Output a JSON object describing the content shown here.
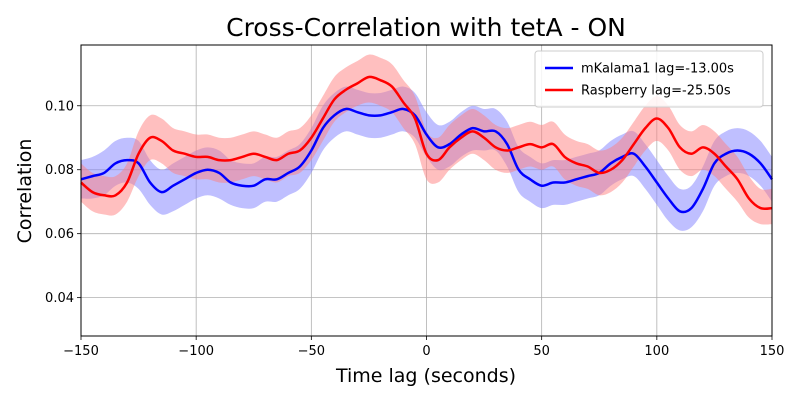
{
  "chart_data": {
    "type": "line",
    "title": "Cross-Correlation with tetA - ON",
    "xlabel": "Time lag (seconds)",
    "ylabel": "Correlation",
    "xlim": [
      -150,
      150
    ],
    "ylim": [
      0.028,
      0.119
    ],
    "xticks": [
      -150,
      -100,
      -50,
      0,
      50,
      100,
      150
    ],
    "xtick_labels": [
      "−150",
      "−100",
      "−50",
      "0",
      "50",
      "100",
      "150"
    ],
    "yticks": [
      0.04,
      0.06,
      0.08,
      0.1
    ],
    "ytick_labels": [
      "0.04",
      "0.06",
      "0.08",
      "0.10"
    ],
    "grid": true,
    "legend_position": "top-right",
    "x": [
      -150,
      -145,
      -140,
      -135,
      -130,
      -125,
      -120,
      -115,
      -110,
      -105,
      -100,
      -95,
      -90,
      -85,
      -80,
      -75,
      -70,
      -65,
      -60,
      -55,
      -50,
      -45,
      -40,
      -35,
      -30,
      -25,
      -20,
      -15,
      -10,
      -5,
      0,
      5,
      10,
      15,
      20,
      25,
      30,
      35,
      40,
      45,
      50,
      55,
      60,
      65,
      70,
      75,
      80,
      85,
      90,
      95,
      100,
      105,
      110,
      115,
      120,
      125,
      130,
      135,
      140,
      145,
      150
    ],
    "series": [
      {
        "name": "mKalama1 lag=-13.00s",
        "color": "#0000ff",
        "band_color": "#8080ff",
        "values": [
          0.077,
          0.078,
          0.079,
          0.082,
          0.083,
          0.082,
          0.076,
          0.073,
          0.075,
          0.077,
          0.079,
          0.08,
          0.079,
          0.076,
          0.075,
          0.075,
          0.077,
          0.077,
          0.079,
          0.081,
          0.086,
          0.093,
          0.097,
          0.099,
          0.098,
          0.097,
          0.097,
          0.098,
          0.099,
          0.097,
          0.091,
          0.087,
          0.088,
          0.091,
          0.093,
          0.092,
          0.092,
          0.088,
          0.08,
          0.077,
          0.075,
          0.076,
          0.076,
          0.077,
          0.078,
          0.079,
          0.082,
          0.084,
          0.085,
          0.081,
          0.076,
          0.071,
          0.067,
          0.068,
          0.074,
          0.082,
          0.085,
          0.086,
          0.085,
          0.082,
          0.077
        ],
        "lower": [
          0.071,
          0.071,
          0.072,
          0.075,
          0.076,
          0.074,
          0.069,
          0.066,
          0.067,
          0.069,
          0.071,
          0.072,
          0.071,
          0.069,
          0.068,
          0.068,
          0.07,
          0.07,
          0.072,
          0.074,
          0.079,
          0.086,
          0.09,
          0.092,
          0.091,
          0.09,
          0.09,
          0.091,
          0.092,
          0.09,
          0.084,
          0.08,
          0.081,
          0.084,
          0.086,
          0.086,
          0.086,
          0.081,
          0.073,
          0.07,
          0.068,
          0.069,
          0.069,
          0.07,
          0.071,
          0.072,
          0.075,
          0.077,
          0.078,
          0.074,
          0.069,
          0.064,
          0.061,
          0.062,
          0.067,
          0.075,
          0.078,
          0.079,
          0.078,
          0.075,
          0.07
        ],
        "upper": [
          0.083,
          0.084,
          0.086,
          0.089,
          0.09,
          0.089,
          0.083,
          0.08,
          0.082,
          0.084,
          0.086,
          0.087,
          0.086,
          0.083,
          0.082,
          0.082,
          0.084,
          0.084,
          0.086,
          0.088,
          0.093,
          0.1,
          0.104,
          0.106,
          0.105,
          0.104,
          0.104,
          0.105,
          0.106,
          0.104,
          0.098,
          0.094,
          0.095,
          0.098,
          0.1,
          0.099,
          0.099,
          0.095,
          0.087,
          0.084,
          0.082,
          0.083,
          0.083,
          0.084,
          0.085,
          0.086,
          0.089,
          0.091,
          0.092,
          0.088,
          0.083,
          0.078,
          0.074,
          0.075,
          0.081,
          0.089,
          0.092,
          0.093,
          0.092,
          0.089,
          0.084
        ]
      },
      {
        "name": "Raspberry lag=-25.50s",
        "color": "#ff0000",
        "band_color": "#ff8080",
        "values": [
          0.076,
          0.073,
          0.072,
          0.072,
          0.076,
          0.085,
          0.09,
          0.089,
          0.086,
          0.085,
          0.084,
          0.084,
          0.083,
          0.083,
          0.084,
          0.085,
          0.084,
          0.083,
          0.085,
          0.086,
          0.09,
          0.096,
          0.102,
          0.105,
          0.107,
          0.109,
          0.108,
          0.106,
          0.101,
          0.096,
          0.085,
          0.083,
          0.087,
          0.09,
          0.092,
          0.09,
          0.087,
          0.086,
          0.087,
          0.088,
          0.087,
          0.088,
          0.084,
          0.082,
          0.081,
          0.079,
          0.08,
          0.083,
          0.088,
          0.093,
          0.096,
          0.093,
          0.087,
          0.085,
          0.087,
          0.085,
          0.081,
          0.077,
          0.071,
          0.068,
          0.068
        ],
        "lower": [
          0.07,
          0.067,
          0.066,
          0.066,
          0.07,
          0.078,
          0.083,
          0.082,
          0.079,
          0.078,
          0.077,
          0.077,
          0.076,
          0.076,
          0.077,
          0.078,
          0.077,
          0.076,
          0.078,
          0.079,
          0.083,
          0.089,
          0.095,
          0.098,
          0.1,
          0.101,
          0.1,
          0.098,
          0.093,
          0.088,
          0.077,
          0.076,
          0.08,
          0.083,
          0.085,
          0.083,
          0.08,
          0.079,
          0.08,
          0.081,
          0.08,
          0.081,
          0.077,
          0.075,
          0.074,
          0.072,
          0.073,
          0.076,
          0.081,
          0.086,
          0.089,
          0.086,
          0.08,
          0.078,
          0.08,
          0.078,
          0.074,
          0.07,
          0.065,
          0.063,
          0.063
        ],
        "upper": [
          0.082,
          0.079,
          0.078,
          0.078,
          0.082,
          0.092,
          0.097,
          0.096,
          0.093,
          0.092,
          0.091,
          0.091,
          0.09,
          0.09,
          0.091,
          0.092,
          0.091,
          0.09,
          0.092,
          0.093,
          0.097,
          0.103,
          0.109,
          0.112,
          0.114,
          0.116,
          0.115,
          0.113,
          0.108,
          0.103,
          0.092,
          0.09,
          0.094,
          0.097,
          0.099,
          0.097,
          0.094,
          0.093,
          0.094,
          0.095,
          0.094,
          0.095,
          0.091,
          0.089,
          0.088,
          0.086,
          0.087,
          0.09,
          0.095,
          0.1,
          0.103,
          0.1,
          0.094,
          0.092,
          0.094,
          0.092,
          0.088,
          0.084,
          0.078,
          0.074,
          0.074
        ]
      }
    ]
  }
}
